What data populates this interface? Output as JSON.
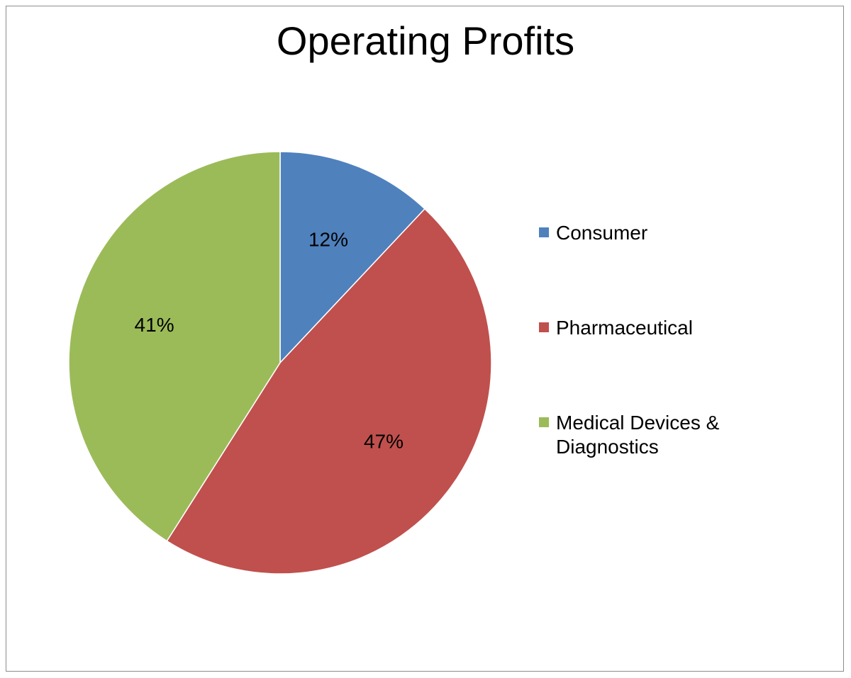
{
  "chart_data": {
    "type": "pie",
    "title": "Operating Profits",
    "categories": [
      "Consumer",
      "Pharmaceutical",
      "Medical Devices & Diagnostics"
    ],
    "values": [
      12,
      47,
      41
    ],
    "data_labels": [
      "12%",
      "47%",
      "41%"
    ],
    "colors": [
      "#4f81bd",
      "#c0504d",
      "#9bbb59"
    ],
    "legend": "right"
  }
}
